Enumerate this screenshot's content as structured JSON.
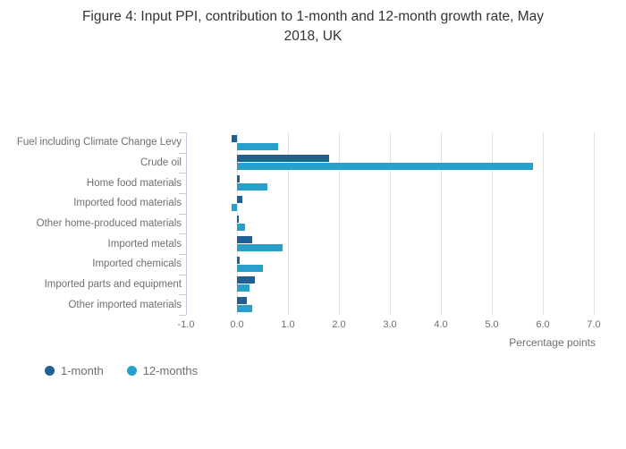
{
  "chart_data": {
    "type": "bar",
    "orientation": "horizontal",
    "title": "Figure 4: Input PPI, contribution to 1-month and 12-month growth rate, May 2018, UK",
    "categories": [
      "Fuel including Climate Change Levy",
      "Crude oil",
      "Home food materials",
      "Imported food materials",
      "Other home-produced materials",
      "Imported metals",
      "Imported chemicals",
      "Imported parts and equipment",
      "Other imported materials"
    ],
    "series": [
      {
        "name": "1-month",
        "color": "#206095",
        "values": [
          -0.1,
          1.8,
          0.05,
          0.1,
          0.03,
          0.3,
          0.05,
          0.35,
          0.2
        ]
      },
      {
        "name": "12-months",
        "color": "#27a0cc",
        "values": [
          0.8,
          5.8,
          0.6,
          -0.1,
          0.15,
          0.9,
          0.5,
          0.25,
          0.3
        ]
      }
    ],
    "xlabel": "Percentage points",
    "ylabel": "",
    "xlim": [
      -1.0,
      7.0
    ],
    "x_ticks": [
      "-1.0",
      "0.0",
      "1.0",
      "2.0",
      "3.0",
      "4.0",
      "5.0",
      "6.0",
      "7.0"
    ],
    "grid": "vertical",
    "legend_position": "bottom-left",
    "colors": {
      "title_text": "#333333",
      "axis_text": "#6f6f6f",
      "gridline": "#e2e2e2",
      "category_axis": "#c5cce0",
      "background": "#ffffff"
    }
  }
}
